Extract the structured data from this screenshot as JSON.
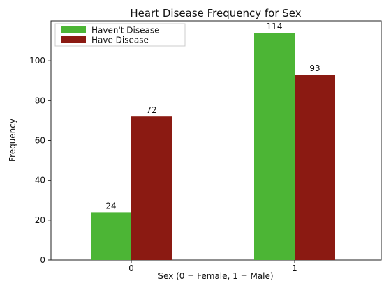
{
  "chart_data": {
    "type": "bar",
    "title": "Heart Disease Frequency for Sex",
    "xlabel": "Sex (0 = Female, 1 = Male)",
    "ylabel": "Frequency",
    "categories": [
      "0",
      "1"
    ],
    "series": [
      {
        "name": "Haven't Disease",
        "values": [
          24,
          114
        ],
        "color": "#4cb535"
      },
      {
        "name": "Have Disease",
        "values": [
          72,
          93
        ],
        "color": "#8b1a12"
      }
    ],
    "ylim": [
      0,
      120
    ],
    "yticks": [
      0,
      20,
      40,
      60,
      80,
      100
    ],
    "grid": false,
    "legend_position": "top-left",
    "data_labels": true
  }
}
